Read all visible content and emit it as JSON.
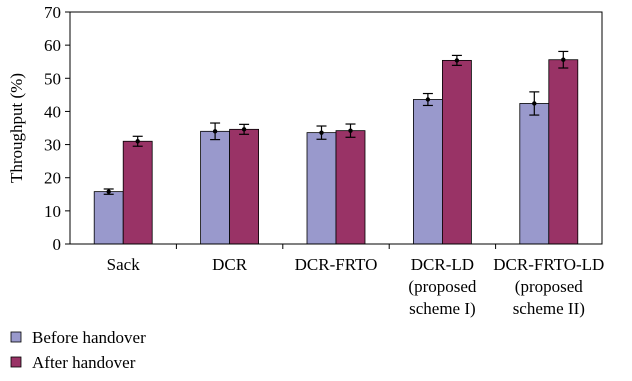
{
  "chart_data": {
    "type": "bar",
    "ylabel": "Throughput (%)",
    "xlabel": "",
    "ylim": [
      0,
      70
    ],
    "yticks": [
      0,
      10,
      20,
      30,
      40,
      50,
      60,
      70
    ],
    "grid": false,
    "legend_position": "bottom-left",
    "categories": [
      [
        "Sack"
      ],
      [
        "DCR"
      ],
      [
        "DCR-FRTO"
      ],
      [
        "DCR-LD",
        "(proposed",
        "scheme I)"
      ],
      [
        "DCR-FRTO-LD",
        "(proposed",
        "scheme II)"
      ]
    ],
    "series": [
      {
        "name": "Before handover",
        "color": "#9999cc",
        "values": [
          15.8,
          34,
          33.6,
          43.6,
          42.4
        ],
        "error": [
          0.8,
          2.5,
          2.0,
          1.8,
          3.5
        ]
      },
      {
        "name": "After handover",
        "color": "#993366",
        "values": [
          31,
          34.6,
          34.2,
          55.4,
          55.6
        ],
        "error": [
          1.5,
          1.5,
          2.0,
          1.5,
          2.5
        ]
      }
    ]
  }
}
